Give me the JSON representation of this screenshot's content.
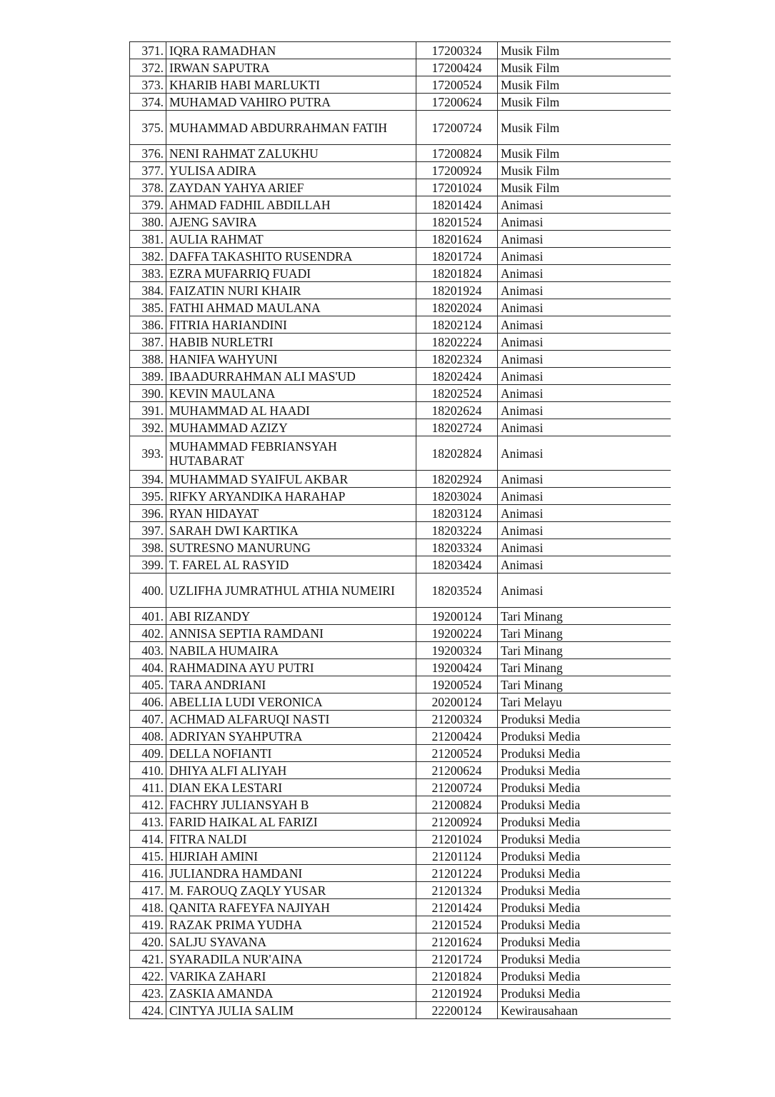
{
  "rows": [
    {
      "no": "371.",
      "name": "IQRA RAMADHAN",
      "id": "17200324",
      "program": "Musik Film"
    },
    {
      "no": "372.",
      "name": "IRWAN SAPUTRA",
      "id": "17200424",
      "program": "Musik Film"
    },
    {
      "no": "373.",
      "name": "KHARIB HABI MARLUKTI",
      "id": "17200524",
      "program": "Musik Film"
    },
    {
      "no": "374.",
      "name": "MUHAMAD VAHIRO PUTRA",
      "id": "17200624",
      "program": "Musik Film"
    },
    {
      "no": "375.",
      "name": "MUHAMMAD ABDURRAHMAN FATIH",
      "id": "17200724",
      "program": "Musik Film",
      "wrap": true
    },
    {
      "no": "376.",
      "name": "NENI RAHMAT ZALUKHU",
      "id": "17200824",
      "program": "Musik Film"
    },
    {
      "no": "377.",
      "name": "YULISA ADIRA",
      "id": "17200924",
      "program": "Musik Film"
    },
    {
      "no": "378.",
      "name": "ZAYDAN YAHYA ARIEF",
      "id": "17201024",
      "program": "Musik Film"
    },
    {
      "no": "379.",
      "name": "AHMAD FADHIL ABDILLAH",
      "id": "18201424",
      "program": "Animasi"
    },
    {
      "no": "380.",
      "name": "AJENG SAVIRA",
      "id": "18201524",
      "program": "Animasi"
    },
    {
      "no": "381.",
      "name": "AULIA RAHMAT",
      "id": "18201624",
      "program": "Animasi"
    },
    {
      "no": "382.",
      "name": "DAFFA TAKASHITO RUSENDRA",
      "id": "18201724",
      "program": "Animasi"
    },
    {
      "no": "383.",
      "name": "EZRA MUFARRIQ FUADI",
      "id": "18201824",
      "program": "Animasi"
    },
    {
      "no": "384.",
      "name": "FAIZATIN NURI KHAIR",
      "id": "18201924",
      "program": "Animasi"
    },
    {
      "no": "385.",
      "name": "FATHI AHMAD MAULANA",
      "id": "18202024",
      "program": "Animasi"
    },
    {
      "no": "386.",
      "name": "FITRIA HARIANDINI",
      "id": "18202124",
      "program": "Animasi"
    },
    {
      "no": "387.",
      "name": "HABIB NURLETRI",
      "id": "18202224",
      "program": "Animasi"
    },
    {
      "no": "388.",
      "name": "HANIFA WAHYUNI",
      "id": "18202324",
      "program": "Animasi"
    },
    {
      "no": "389.",
      "name": "IBAADURRAHMAN ALI MAS'UD",
      "id": "18202424",
      "program": "Animasi"
    },
    {
      "no": "390.",
      "name": "KEVIN MAULANA",
      "id": "18202524",
      "program": "Animasi"
    },
    {
      "no": "391.",
      "name": "MUHAMMAD AL HAADI",
      "id": "18202624",
      "program": "Animasi"
    },
    {
      "no": "392.",
      "name": "MUHAMMAD AZIZY",
      "id": "18202724",
      "program": "Animasi"
    },
    {
      "no": "393.",
      "name": "MUHAMMAD FEBRIANSYAH HUTABARAT",
      "id": "18202824",
      "program": "Animasi",
      "wrap": true
    },
    {
      "no": "394.",
      "name": "MUHAMMAD SYAIFUL AKBAR",
      "id": "18202924",
      "program": "Animasi"
    },
    {
      "no": "395.",
      "name": "RIFKY ARYANDIKA HARAHAP",
      "id": "18203024",
      "program": "Animasi"
    },
    {
      "no": "396.",
      "name": "RYAN HIDAYAT",
      "id": "18203124",
      "program": "Animasi"
    },
    {
      "no": "397.",
      "name": "SARAH DWI KARTIKA",
      "id": "18203224",
      "program": "Animasi"
    },
    {
      "no": "398.",
      "name": "SUTRESNO MANURUNG",
      "id": "18203324",
      "program": "Animasi"
    },
    {
      "no": "399.",
      "name": "T. FAREL AL RASYID",
      "id": "18203424",
      "program": "Animasi"
    },
    {
      "no": "400.",
      "name": "UZLIFHA JUMRATHUL ATHIA NUMEIRI",
      "id": "18203524",
      "program": "Animasi",
      "wrap": true
    },
    {
      "no": "401.",
      "name": "ABI RIZANDY",
      "id": "19200124",
      "program": "Tari Minang"
    },
    {
      "no": "402.",
      "name": "ANNISA SEPTIA RAMDANI",
      "id": "19200224",
      "program": "Tari Minang"
    },
    {
      "no": "403.",
      "name": "NABILA HUMAIRA",
      "id": "19200324",
      "program": "Tari Minang"
    },
    {
      "no": "404.",
      "name": "RAHMADINA AYU PUTRI",
      "id": "19200424",
      "program": "Tari Minang"
    },
    {
      "no": "405.",
      "name": "TARA ANDRIANI",
      "id": "19200524",
      "program": "Tari Minang"
    },
    {
      "no": "406.",
      "name": "ABELLIA LUDI VERONICA",
      "id": "20200124",
      "program": "Tari Melayu"
    },
    {
      "no": "407.",
      "name": "ACHMAD ALFARUQI NASTI",
      "id": "21200324",
      "program": "Produksi Media"
    },
    {
      "no": "408.",
      "name": "ADRIYAN SYAHPUTRA",
      "id": "21200424",
      "program": "Produksi Media"
    },
    {
      "no": "409.",
      "name": "DELLA NOFIANTI",
      "id": "21200524",
      "program": "Produksi Media"
    },
    {
      "no": "410.",
      "name": "DHIYA ALFI ALIYAH",
      "id": "21200624",
      "program": "Produksi Media"
    },
    {
      "no": "411.",
      "name": "DIAN EKA LESTARI",
      "id": "21200724",
      "program": "Produksi Media"
    },
    {
      "no": "412.",
      "name": "FACHRY JULIANSYAH B",
      "id": "21200824",
      "program": "Produksi Media"
    },
    {
      "no": "413.",
      "name": "FARID HAIKAL AL FARIZI",
      "id": "21200924",
      "program": "Produksi Media"
    },
    {
      "no": "414.",
      "name": "FITRA NALDI",
      "id": "21201024",
      "program": "Produksi Media"
    },
    {
      "no": "415.",
      "name": "HIJRIAH AMINI",
      "id": "21201124",
      "program": "Produksi Media"
    },
    {
      "no": "416.",
      "name": "JULIANDRA HAMDANI",
      "id": "21201224",
      "program": "Produksi Media"
    },
    {
      "no": "417.",
      "name": "M. FAROUQ ZAQLY YUSAR",
      "id": "21201324",
      "program": "Produksi Media"
    },
    {
      "no": "418.",
      "name": "QANITA RAFEYFA NAJIYAH",
      "id": "21201424",
      "program": "Produksi Media"
    },
    {
      "no": "419.",
      "name": "RAZAK PRIMA YUDHA",
      "id": "21201524",
      "program": "Produksi Media"
    },
    {
      "no": "420.",
      "name": "SALJU SYAVANA",
      "id": "21201624",
      "program": "Produksi Media"
    },
    {
      "no": "421.",
      "name": "SYARADILA NUR'AINA",
      "id": "21201724",
      "program": "Produksi Media"
    },
    {
      "no": "422.",
      "name": "VARIKA ZAHARI",
      "id": "21201824",
      "program": "Produksi Media"
    },
    {
      "no": "423.",
      "name": "ZASKIA AMANDA",
      "id": "21201924",
      "program": "Produksi Media"
    },
    {
      "no": "424.",
      "name": "CINTYA JULIA SALIM",
      "id": "22200124",
      "program": "Kewirausahaan"
    }
  ]
}
